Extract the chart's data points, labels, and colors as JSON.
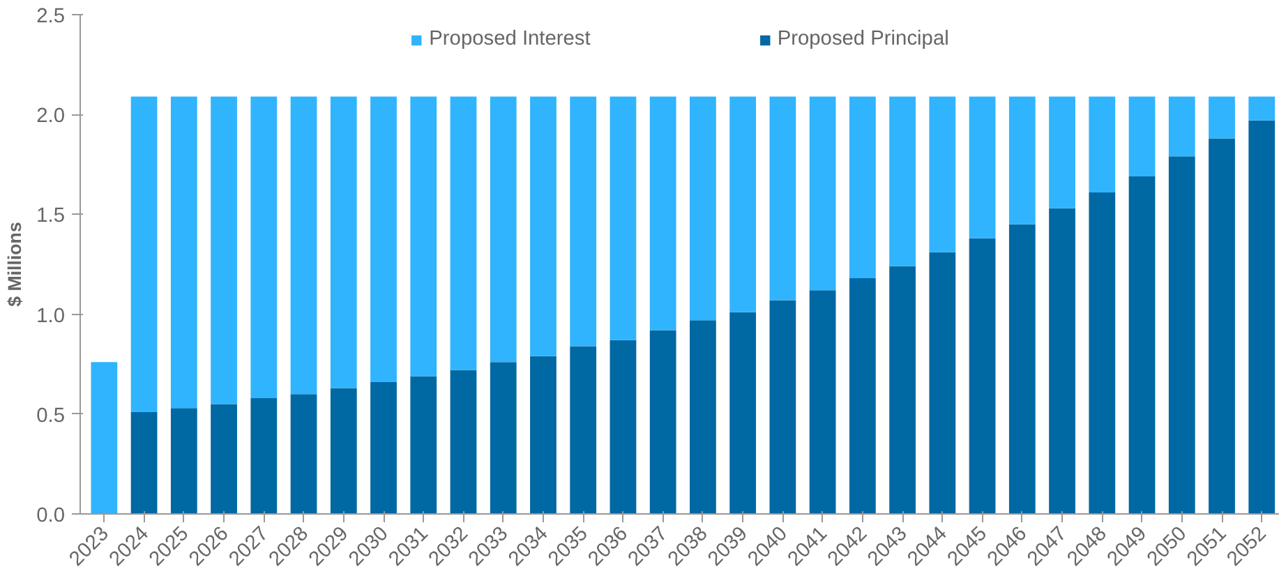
{
  "chart_data": {
    "type": "bar",
    "stacked": true,
    "ylabel": "$ Millions",
    "categories": [
      "2023",
      "2024",
      "2025",
      "2026",
      "2027",
      "2028",
      "2029",
      "2030",
      "2031",
      "2032",
      "2033",
      "2034",
      "2035",
      "2036",
      "2037",
      "2038",
      "2039",
      "2040",
      "2041",
      "2042",
      "2043",
      "2044",
      "2045",
      "2046",
      "2047",
      "2048",
      "2049",
      "2050",
      "2051",
      "2052"
    ],
    "series": [
      {
        "name": "Proposed Principal",
        "color": "#0068a3",
        "values": [
          null,
          0.51,
          0.53,
          0.55,
          0.58,
          0.6,
          0.63,
          0.66,
          0.69,
          0.72,
          0.76,
          0.79,
          0.84,
          0.87,
          0.92,
          0.97,
          1.01,
          1.07,
          1.12,
          1.18,
          1.24,
          1.31,
          1.38,
          1.45,
          1.53,
          1.61,
          1.69,
          1.79,
          1.88,
          1.97
        ]
      },
      {
        "name": "Proposed Interest",
        "color": "#30b4fd",
        "values": [
          0.76,
          1.58,
          1.56,
          1.54,
          1.51,
          1.49,
          1.46,
          1.43,
          1.4,
          1.37,
          1.33,
          1.3,
          1.25,
          1.22,
          1.17,
          1.12,
          1.08,
          1.02,
          0.97,
          0.91,
          0.85,
          0.78,
          0.71,
          0.64,
          0.56,
          0.48,
          0.4,
          0.3,
          0.21,
          0.12
        ]
      }
    ],
    "ylim": [
      0,
      2.5
    ],
    "yticks": [
      {
        "value": 0,
        "label": "0.0"
      },
      {
        "value": 0.5,
        "label": "0.5"
      },
      {
        "value": 1,
        "label": "1.0"
      },
      {
        "value": 1.5,
        "label": "1.5"
      },
      {
        "value": 2,
        "label": "2.0"
      },
      {
        "value": 2.5,
        "label": "2.5"
      }
    ],
    "grid": false,
    "legend": "top"
  }
}
